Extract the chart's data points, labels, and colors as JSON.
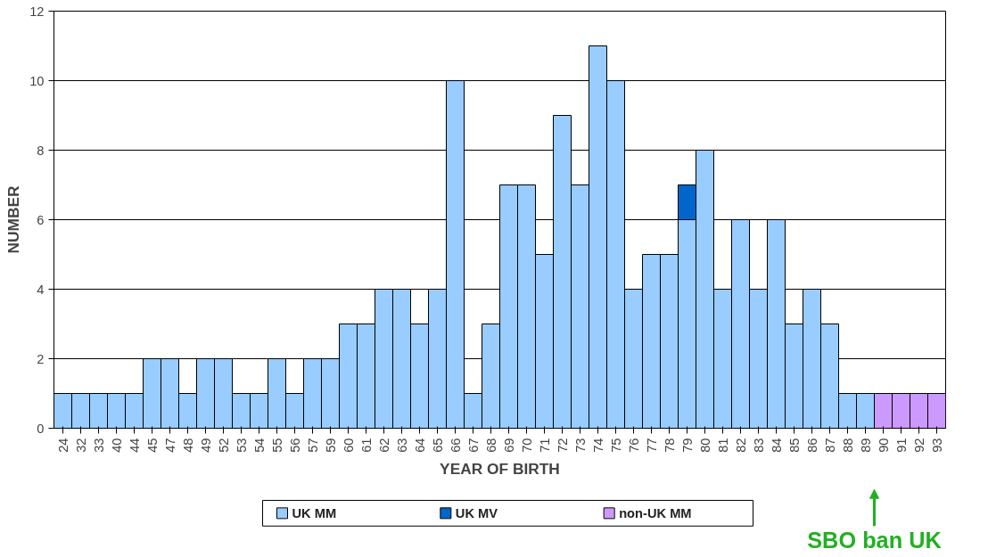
{
  "chart_data": {
    "type": "bar",
    "stacked": true,
    "xlabel": "YEAR OF BIRTH",
    "ylabel": "NUMBER",
    "categories": [
      "24",
      "32",
      "33",
      "40",
      "44",
      "45",
      "47",
      "48",
      "49",
      "52",
      "53",
      "54",
      "55",
      "56",
      "57",
      "59",
      "60",
      "61",
      "62",
      "63",
      "64",
      "65",
      "66",
      "67",
      "68",
      "69",
      "70",
      "71",
      "72",
      "73",
      "74",
      "75",
      "76",
      "77",
      "78",
      "79",
      "80",
      "81",
      "82",
      "83",
      "84",
      "85",
      "86",
      "87",
      "88",
      "89",
      "90",
      "91",
      "92",
      "93"
    ],
    "series": [
      {
        "name": "UK MM",
        "color": "#99ccff",
        "values": [
          1,
          1,
          1,
          1,
          1,
          2,
          2,
          1,
          2,
          2,
          1,
          1,
          2,
          1,
          2,
          2,
          3,
          3,
          4,
          4,
          3,
          4,
          10,
          1,
          3,
          7,
          7,
          5,
          9,
          7,
          11,
          10,
          4,
          5,
          5,
          6,
          8,
          4,
          6,
          4,
          6,
          3,
          4,
          3,
          1,
          1,
          null,
          null,
          null,
          null
        ]
      },
      {
        "name": "UK MV",
        "color": "#0066cc",
        "values": [
          null,
          null,
          null,
          null,
          null,
          null,
          null,
          null,
          null,
          null,
          null,
          null,
          null,
          null,
          null,
          null,
          null,
          null,
          null,
          null,
          null,
          null,
          null,
          null,
          null,
          null,
          null,
          null,
          null,
          null,
          null,
          null,
          null,
          null,
          null,
          1,
          null,
          null,
          null,
          null,
          null,
          null,
          null,
          null,
          null,
          null,
          null,
          null,
          null,
          null
        ]
      },
      {
        "name": "non-UK MM",
        "color": "#cc99ff",
        "values": [
          null,
          null,
          null,
          null,
          null,
          null,
          null,
          null,
          null,
          null,
          null,
          null,
          null,
          null,
          null,
          null,
          null,
          null,
          null,
          null,
          null,
          null,
          null,
          null,
          null,
          null,
          null,
          null,
          null,
          null,
          null,
          null,
          null,
          null,
          null,
          null,
          null,
          null,
          null,
          null,
          null,
          null,
          null,
          null,
          null,
          null,
          1,
          1,
          1,
          1
        ]
      }
    ],
    "ylim": [
      0,
      12
    ],
    "yticks": [
      0,
      2,
      4,
      6,
      8,
      10,
      12
    ],
    "grid": "y",
    "legend": "bottom",
    "annotations": [
      "SBO ban UK"
    ]
  }
}
